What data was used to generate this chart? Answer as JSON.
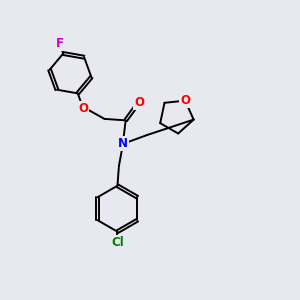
{
  "background_color": "#e8e8f0",
  "bond_color": "#000000",
  "atom_colors": {
    "F": "#cc00cc",
    "O": "#ff0000",
    "N": "#0000ff",
    "Cl": "#008000"
  },
  "font_size": 8.5,
  "linewidth": 1.4,
  "figsize": [
    3.0,
    3.0
  ],
  "dpi": 100
}
